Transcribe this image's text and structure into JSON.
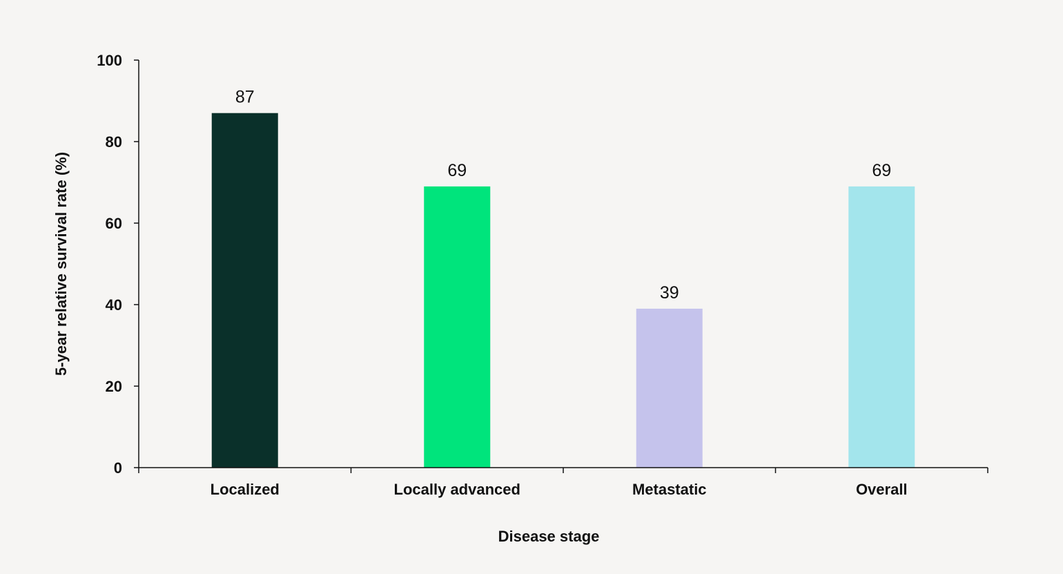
{
  "chart_data": {
    "type": "bar",
    "title": "",
    "xlabel": "Disease stage",
    "ylabel": "5-year relative survival rate (%)",
    "categories": [
      "Localized",
      "Locally advanced",
      "Metastatic",
      "Overall"
    ],
    "values": [
      87,
      69,
      39,
      69
    ],
    "data_labels": [
      "87",
      "69",
      "39",
      "69"
    ],
    "colors": [
      "#0a302a",
      "#00e47c",
      "#c5c3ec",
      "#a3e5ec"
    ],
    "ylim": [
      0,
      100
    ],
    "yticks": [
      0,
      20,
      40,
      60,
      80,
      100
    ],
    "ytick_labels": [
      "0",
      "20",
      "40",
      "60",
      "80",
      "100"
    ],
    "grid": false,
    "legend": "none",
    "background_color": "#f6f5f3",
    "axis_color": "#111111"
  }
}
